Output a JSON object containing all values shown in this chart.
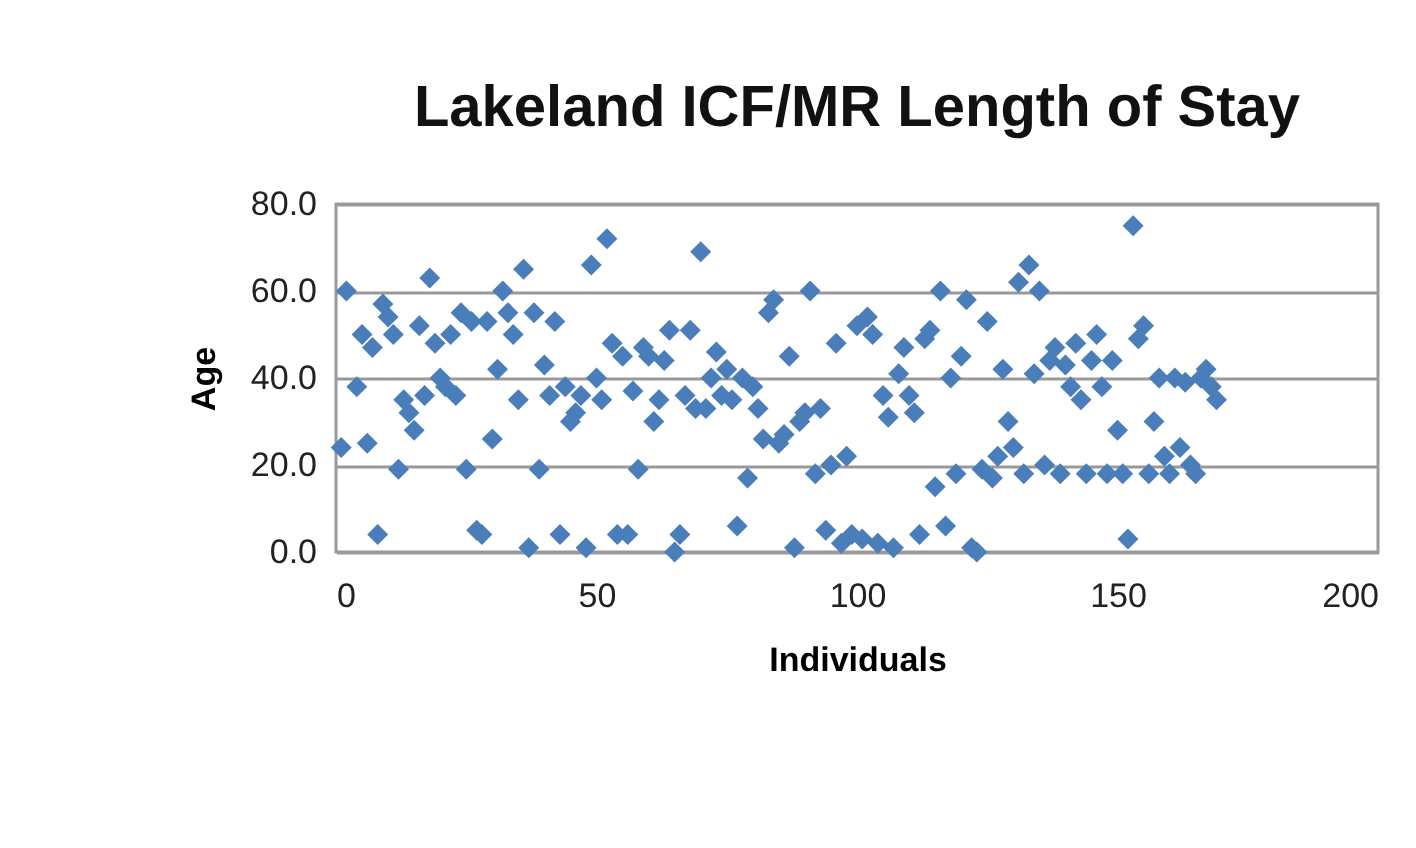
{
  "chart_data": {
    "type": "scatter",
    "title": "Lakeland ICF/MR Length of Stay",
    "xlabel": "Individuals",
    "ylabel": "Age",
    "x": [
      1,
      2,
      4,
      5,
      6,
      7,
      8,
      9,
      10,
      11,
      12,
      13,
      14,
      15,
      16,
      17,
      18,
      19,
      20,
      21,
      22,
      23,
      24,
      25,
      26,
      27,
      28,
      29,
      30,
      31,
      32,
      33,
      34,
      35,
      36,
      37,
      38,
      39,
      40,
      41,
      42,
      43,
      44,
      45,
      46,
      47,
      48,
      49,
      50,
      51,
      52,
      53,
      54,
      55,
      56,
      57,
      58,
      59,
      60,
      61,
      62,
      63,
      64,
      65,
      66,
      67,
      68,
      69,
      70,
      71,
      72,
      73,
      74,
      75,
      76,
      77,
      78,
      79,
      80,
      81,
      82,
      83,
      84,
      85,
      86,
      87,
      88,
      89,
      90,
      91,
      92,
      93,
      94,
      95,
      96,
      97,
      98,
      99,
      100,
      101,
      102,
      103,
      104,
      105,
      106,
      107,
      108,
      109,
      110,
      111,
      112,
      113,
      114,
      115,
      116,
      117,
      118,
      119,
      120,
      121,
      122,
      123,
      124,
      125,
      126,
      127,
      128,
      129,
      130,
      131,
      132,
      133,
      134,
      135,
      136,
      137,
      138,
      139,
      140,
      141,
      142,
      143,
      144,
      145,
      146,
      147,
      148,
      149,
      150,
      151,
      152,
      153,
      154,
      155,
      156,
      157,
      158,
      159,
      160,
      161,
      162,
      163,
      164,
      165,
      166,
      167,
      168,
      169
    ],
    "series": [
      {
        "color": "#4a7ebb",
        "values": [
          24,
          60,
          38,
          50,
          25,
          47,
          4,
          57,
          54,
          50,
          19,
          35,
          32,
          28,
          52,
          36,
          63,
          48,
          40,
          38,
          50,
          36,
          55,
          19,
          53,
          5,
          4,
          53,
          26,
          42,
          60,
          55,
          50,
          35,
          65,
          1,
          55,
          19,
          43,
          36,
          53,
          4,
          38,
          30,
          32,
          36,
          1,
          66,
          40,
          35,
          72,
          48,
          4,
          45,
          4,
          37,
          19,
          47,
          45,
          30,
          35,
          44,
          51,
          0,
          4,
          36,
          51,
          33,
          69,
          33,
          40,
          46,
          36,
          42,
          35,
          6,
          40,
          17,
          38,
          33,
          26,
          55,
          58,
          25,
          27,
          45,
          1,
          30,
          32,
          60,
          18,
          33,
          5,
          20,
          48,
          2,
          22,
          4,
          52,
          3,
          54,
          50,
          2,
          36,
          31,
          1,
          41,
          47,
          36,
          32,
          4,
          49,
          51,
          15,
          60,
          6,
          40,
          18,
          45,
          58,
          1,
          0,
          19,
          53,
          17,
          22,
          42,
          30,
          24,
          62,
          18,
          66,
          41,
          60,
          20,
          44,
          47,
          18,
          43,
          38,
          48,
          35,
          18,
          44,
          50,
          38,
          18,
          44,
          28,
          18,
          3,
          75,
          49,
          52,
          18,
          30,
          40,
          22,
          18,
          40,
          24,
          39,
          20,
          18,
          40,
          42,
          38,
          35
        ]
      }
    ],
    "xlim": [
      0,
      200
    ],
    "xticks": [
      0,
      50,
      100,
      150,
      200
    ],
    "ylim": [
      0,
      80
    ],
    "yticks": [
      {
        "value": 0,
        "label": "0.0"
      },
      {
        "value": 20,
        "label": "20.0"
      },
      {
        "value": 40,
        "label": "40.0"
      },
      {
        "value": 60,
        "label": "60.0"
      },
      {
        "value": 80,
        "label": "80.0"
      }
    ],
    "grid": "y",
    "marker": "diamond"
  }
}
